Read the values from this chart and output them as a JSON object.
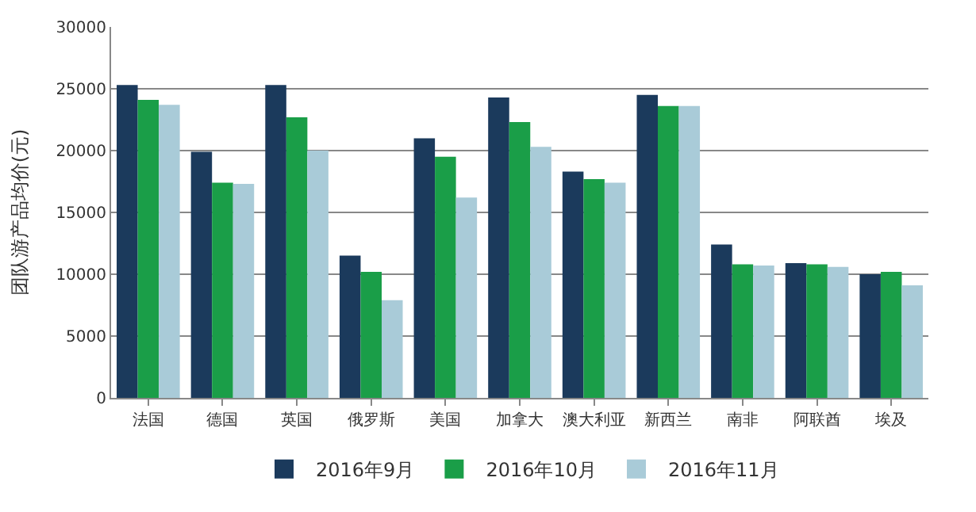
{
  "chart_data": {
    "type": "bar",
    "ylabel": "团队游产品均价(元)",
    "categories": [
      "法国",
      "德国",
      "英国",
      "俄罗斯",
      "美国",
      "加拿大",
      "澳大利亚",
      "新西兰",
      "南非",
      "阿联酋",
      "埃及"
    ],
    "series": [
      {
        "name": "2016年9月",
        "color": "#1b3a5c",
        "values": [
          25300,
          19900,
          25300,
          11500,
          21000,
          24300,
          18300,
          24500,
          12400,
          10900,
          10000
        ]
      },
      {
        "name": "2016年10月",
        "color": "#1a9e48",
        "values": [
          24100,
          17400,
          22700,
          10200,
          19500,
          22300,
          17700,
          23600,
          10800,
          10800,
          10200
        ]
      },
      {
        "name": "2016年11月",
        "color": "#a9cbd8",
        "values": [
          23700,
          17300,
          20000,
          7900,
          16200,
          20300,
          17400,
          23600,
          10700,
          10600,
          9100
        ]
      }
    ],
    "ylim": [
      0,
      30000
    ],
    "yticks": [
      0,
      5000,
      10000,
      15000,
      20000,
      25000,
      30000
    ],
    "grid": "y",
    "legend": "bottom"
  }
}
